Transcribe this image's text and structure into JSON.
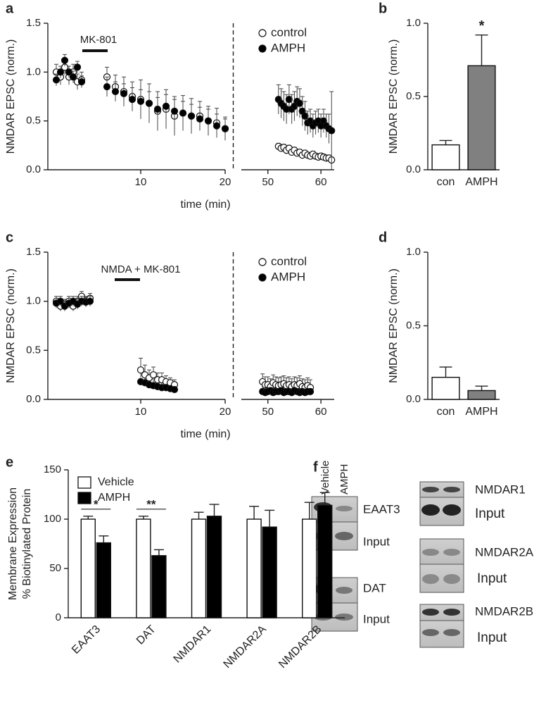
{
  "chart_data": [
    {
      "type": "scatter",
      "panel_label": "a",
      "ylabel": "NMDAR EPSC (norm.)",
      "xlabel": "time (min)",
      "annotation": "MK-801",
      "legend": "upper right",
      "xlim": [
        [
          -1,
          20
        ],
        [
          45,
          62.5
        ]
      ],
      "xticks": [
        10,
        20,
        50,
        60
      ],
      "ylim": [
        0,
        1.5
      ],
      "yticks": [
        {
          "value": 0,
          "label": "0.0"
        },
        0.5,
        {
          "value": 1,
          "label": "1.0"
        },
        1.5
      ],
      "x": [
        0,
        0.5,
        1,
        1.5,
        2,
        2.5,
        3,
        6,
        7,
        8,
        9,
        10,
        11,
        12,
        13,
        14,
        15,
        16,
        17,
        18,
        19,
        20,
        52,
        52.5,
        53,
        53.5,
        54,
        54.5,
        55,
        55.5,
        56,
        56.5,
        57,
        57.5,
        58,
        58.5,
        59,
        59.5,
        60,
        60.5,
        61,
        61.5,
        62
      ],
      "series": [
        {
          "name": "control",
          "color": "#ffffff",
          "values": [
            1.0,
            0.95,
            1.05,
            0.95,
            1.0,
            0.9,
            0.92,
            0.95,
            0.85,
            0.8,
            0.75,
            0.72,
            0.68,
            0.6,
            0.62,
            0.55,
            0.58,
            0.55,
            0.55,
            0.5,
            0.48,
            0.42,
            0.24,
            0.22,
            0.23,
            0.2,
            0.22,
            0.18,
            0.2,
            0.17,
            0.18,
            0.15,
            0.17,
            0.15,
            0.14,
            0.16,
            0.14,
            0.13,
            0.14,
            0.13,
            0.12,
            0.12,
            0.1
          ],
          "errors": [
            0.08,
            0.08,
            0.08,
            0.08,
            0.08,
            0.08,
            0.08,
            0.1,
            0.12,
            0.15,
            0.15,
            0.2,
            0.2,
            0.2,
            0.2,
            0.2,
            0.18,
            0.18,
            0.15,
            0.15,
            0.15,
            0.12,
            0.03,
            0.03,
            0.03,
            0.03,
            0.03,
            0.03,
            0.03,
            0.03,
            0.03,
            0.03,
            0.03,
            0.03,
            0.03,
            0.03,
            0.03,
            0.03,
            0.03,
            0.03,
            0.03,
            0.03,
            0.03
          ]
        },
        {
          "name": "AMPH",
          "color": "#000000",
          "values": [
            0.92,
            1.0,
            1.12,
            1.0,
            0.95,
            1.05,
            0.9,
            0.85,
            0.8,
            0.78,
            0.72,
            0.7,
            0.68,
            0.62,
            0.65,
            0.6,
            0.58,
            0.55,
            0.52,
            0.5,
            0.45,
            0.42,
            0.72,
            0.68,
            0.65,
            0.62,
            0.72,
            0.62,
            0.65,
            0.7,
            0.68,
            0.6,
            0.55,
            0.48,
            0.5,
            0.45,
            0.48,
            0.5,
            0.45,
            0.5,
            0.45,
            0.42,
            0.4
          ],
          "errors": [
            0.06,
            0.06,
            0.06,
            0.06,
            0.06,
            0.06,
            0.06,
            0.1,
            0.1,
            0.1,
            0.12,
            0.12,
            0.12,
            0.12,
            0.12,
            0.12,
            0.12,
            0.12,
            0.12,
            0.12,
            0.12,
            0.1,
            0.15,
            0.15,
            0.15,
            0.15,
            0.15,
            0.15,
            0.15,
            0.15,
            0.15,
            0.15,
            0.15,
            0.12,
            0.12,
            0.12,
            0.12,
            0.12,
            0.12,
            0.12,
            0.12,
            0.15,
            0.4
          ]
        }
      ]
    },
    {
      "type": "bar",
      "panel_label": "b",
      "ylabel": "NMDAR EPSC (norm.)",
      "categories": [
        "con",
        "AMPH"
      ],
      "values": [
        0.17,
        0.71
      ],
      "errors": [
        0.03,
        0.21
      ],
      "colors": [
        "#ffffff",
        "#808080"
      ],
      "significance": "*",
      "ylim": [
        0,
        1.0
      ],
      "yticks": [
        {
          "value": 0,
          "label": "0.0"
        },
        0.5,
        {
          "value": 1,
          "label": "1.0"
        }
      ]
    },
    {
      "type": "scatter",
      "panel_label": "c",
      "ylabel": "NMDAR EPSC (norm.)",
      "xlabel": "time (min)",
      "annotation": "NMDA + MK-801",
      "legend": "upper right",
      "xlim": [
        [
          -1,
          20
        ],
        [
          45,
          62.5
        ]
      ],
      "xticks": [
        10,
        20,
        50,
        60
      ],
      "ylim": [
        0,
        1.5
      ],
      "yticks": [
        {
          "value": 0,
          "label": "0.0"
        },
        0.5,
        {
          "value": 1,
          "label": "1.0"
        },
        1.5
      ],
      "x": [
        0,
        0.5,
        1,
        1.5,
        2,
        2.5,
        3,
        3.5,
        4,
        10,
        10.5,
        11,
        11.5,
        12,
        12.5,
        13,
        13.5,
        14,
        49,
        49.5,
        50,
        50.5,
        51,
        51.5,
        52,
        52.5,
        53,
        53.5,
        54,
        54.5,
        55,
        55.5,
        56,
        56.5,
        57,
        57.5,
        58
      ],
      "series": [
        {
          "name": "control",
          "color": "#ffffff",
          "values": [
            1.0,
            0.95,
            0.97,
            1.0,
            0.95,
            1.0,
            1.05,
            1.0,
            1.03,
            0.3,
            0.25,
            0.22,
            0.25,
            0.2,
            0.2,
            0.18,
            0.17,
            0.15,
            0.18,
            0.15,
            0.15,
            0.13,
            0.17,
            0.15,
            0.14,
            0.15,
            0.16,
            0.14,
            0.15,
            0.13,
            0.15,
            0.14,
            0.16,
            0.13,
            0.12,
            0.14,
            0.12
          ],
          "errors": [
            0.05,
            0.05,
            0.05,
            0.05,
            0.05,
            0.05,
            0.05,
            0.05,
            0.05,
            0.12,
            0.1,
            0.08,
            0.08,
            0.07,
            0.07,
            0.06,
            0.05,
            0.05,
            0.08,
            0.08,
            0.08,
            0.08,
            0.08,
            0.08,
            0.08,
            0.08,
            0.08,
            0.08,
            0.08,
            0.08,
            0.08,
            0.08,
            0.08,
            0.08,
            0.08,
            0.08,
            0.08
          ]
        },
        {
          "name": "AMPH",
          "color": "#000000",
          "values": [
            0.98,
            1.0,
            0.95,
            0.98,
            1.0,
            0.97,
            1.0,
            0.99,
            1.0,
            0.18,
            0.17,
            0.15,
            0.14,
            0.13,
            0.12,
            0.12,
            0.11,
            0.1,
            0.08,
            0.07,
            0.08,
            0.09,
            0.07,
            0.08,
            0.08,
            0.09,
            0.07,
            0.08,
            0.08,
            0.07,
            0.09,
            0.08,
            0.07,
            0.08,
            0.07,
            0.08,
            0.08
          ],
          "errors": [
            0.05,
            0.05,
            0.05,
            0.05,
            0.05,
            0.05,
            0.05,
            0.05,
            0.05,
            0.03,
            0.03,
            0.03,
            0.03,
            0.03,
            0.03,
            0.03,
            0.03,
            0.03,
            0.03,
            0.03,
            0.03,
            0.03,
            0.03,
            0.03,
            0.03,
            0.03,
            0.03,
            0.03,
            0.03,
            0.03,
            0.03,
            0.03,
            0.03,
            0.03,
            0.03,
            0.03,
            0.03
          ]
        }
      ]
    },
    {
      "type": "bar",
      "panel_label": "d",
      "ylabel": "NMDAR EPSC (norm.)",
      "categories": [
        "con",
        "AMPH"
      ],
      "values": [
        0.15,
        0.06
      ],
      "errors": [
        0.07,
        0.03
      ],
      "colors": [
        "#ffffff",
        "#808080"
      ],
      "ylim": [
        0,
        1.0
      ],
      "yticks": [
        {
          "value": 0,
          "label": "0.0"
        },
        0.5,
        {
          "value": 1,
          "label": "1.0"
        }
      ]
    },
    {
      "type": "grouped-bar",
      "panel_label": "e",
      "ylabel": [
        "Membrane Expression",
        "% Biotinylated Protein"
      ],
      "legend": "upper left",
      "categories": [
        "EAAT3",
        "DAT",
        "NMDAR1",
        "NMDAR2A",
        "NMDAR2B"
      ],
      "ylim": [
        0,
        150
      ],
      "yticks": [
        0,
        50,
        100,
        150
      ],
      "significance": [
        "*",
        "**"
      ],
      "series": [
        {
          "name": "Vehicle",
          "color": "#ffffff",
          "values": [
            100,
            100,
            100,
            100,
            100
          ],
          "errors": [
            3,
            3,
            7,
            13,
            17
          ]
        },
        {
          "name": "AMPH",
          "color": "#000000",
          "values": [
            76,
            63,
            103,
            92,
            114
          ],
          "errors": [
            7,
            6,
            12,
            17,
            13
          ]
        }
      ]
    }
  ],
  "panel_f": {
    "panel_label": "f",
    "lanes": [
      "Vehicle",
      "AMPH"
    ],
    "blots": [
      {
        "label": "EAAT3",
        "input": "Input"
      },
      {
        "label": "DAT",
        "input": "Input"
      },
      {
        "label": "NMDAR1",
        "input": "Input"
      },
      {
        "label": "NMDAR2A",
        "input": "Input"
      },
      {
        "label": "NMDAR2B",
        "input": "Input"
      }
    ]
  }
}
